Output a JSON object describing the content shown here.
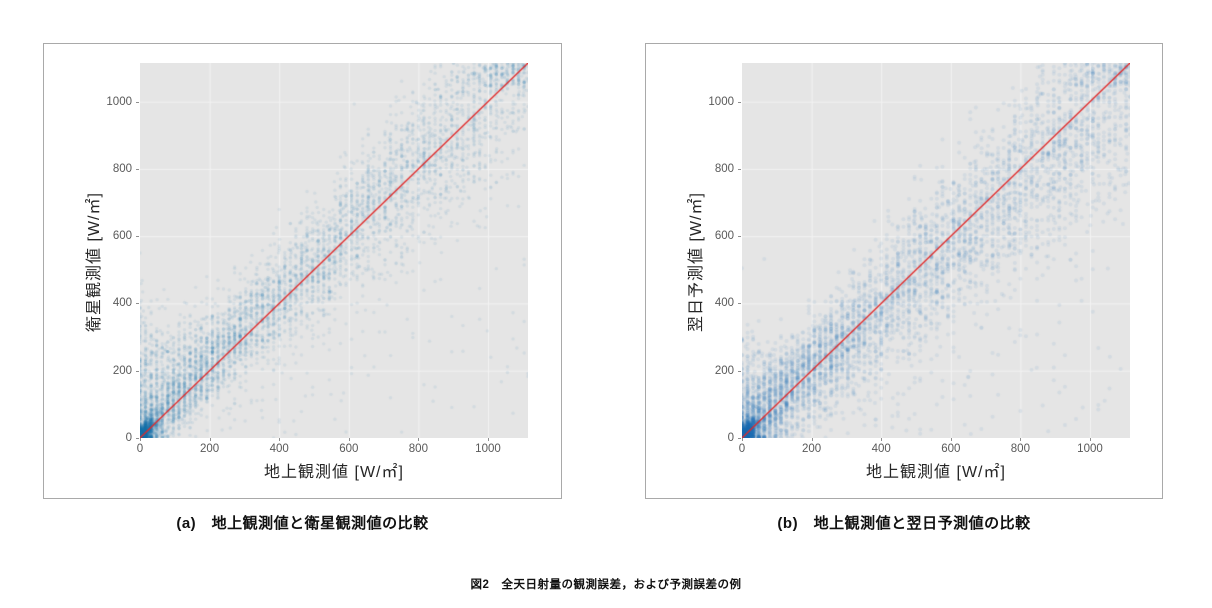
{
  "page": {
    "figure_caption": "図2　全天日射量の観測誤差，および予測誤差の例"
  },
  "chart_data": [
    {
      "type": "scatter",
      "caption": "(a)　地上観測値と衛星観測値の比較",
      "xlabel": "地上観測値 [W/㎡]",
      "ylabel": "衛星観測値 [W/㎡]",
      "xlim": [
        0,
        1115
      ],
      "ylim": [
        0,
        1115
      ],
      "xticks": [
        0,
        200,
        400,
        600,
        800,
        1000
      ],
      "yticks": [
        0,
        200,
        400,
        600,
        800,
        1000
      ],
      "grid": true,
      "plot_bg": "#e5e5e5",
      "grid_color": "#f3f3f3",
      "identity_line": {
        "color": "#e02b2b",
        "width": 1.3,
        "label": "y = x"
      },
      "marker": {
        "color": "#2077b4",
        "alpha": 0.09,
        "radius": 1.7
      },
      "relationship": "satellite observation vs ground observation; strong 1:1 correlation, dense cluster near origin, positive bias (points above line) at low irradiance, scatter width about ±150 W/m2",
      "generator": {
        "seed": 1234,
        "n": 5600,
        "power": 1.7,
        "gain": 1.02,
        "noise_base": 35,
        "noise_slope": 0.1,
        "low_bias_amp": 170,
        "low_bias_scale": 230,
        "quantize_step": 16,
        "quantize_frac": 0.7,
        "under_frac": 0.05,
        "origin_cluster": 900
      }
    },
    {
      "type": "scatter",
      "caption": "(b)　地上観測値と翌日予測値の比較",
      "xlabel": "地上観測値 [W/㎡]",
      "ylabel": "翌日予測値 [W/㎡]",
      "xlim": [
        0,
        1115
      ],
      "ylim": [
        0,
        1115
      ],
      "xticks": [
        0,
        200,
        400,
        600,
        800,
        1000
      ],
      "yticks": [
        0,
        200,
        400,
        600,
        800,
        1000
      ],
      "grid": true,
      "plot_bg": "#e5e5e5",
      "grid_color": "#f3f3f3",
      "identity_line": {
        "color": "#e02b2b",
        "width": 1.3,
        "label": "y = x"
      },
      "marker": {
        "color": "#2077b4",
        "alpha": 0.085,
        "radius": 2.0
      },
      "relationship": "next-day forecast vs ground observation; broader scatter than (a), cloud centered slightly below the 1:1 line at high irradiance, dense cluster near origin",
      "generator": {
        "seed": 98765,
        "n": 5200,
        "power": 1.55,
        "gain": 0.95,
        "noise_base": 45,
        "noise_slope": 0.11,
        "low_bias_amp": 130,
        "low_bias_scale": 160,
        "quantize_step": 16,
        "quantize_frac": 0.75,
        "under_frac": 0.06,
        "origin_cluster": 800
      }
    }
  ]
}
